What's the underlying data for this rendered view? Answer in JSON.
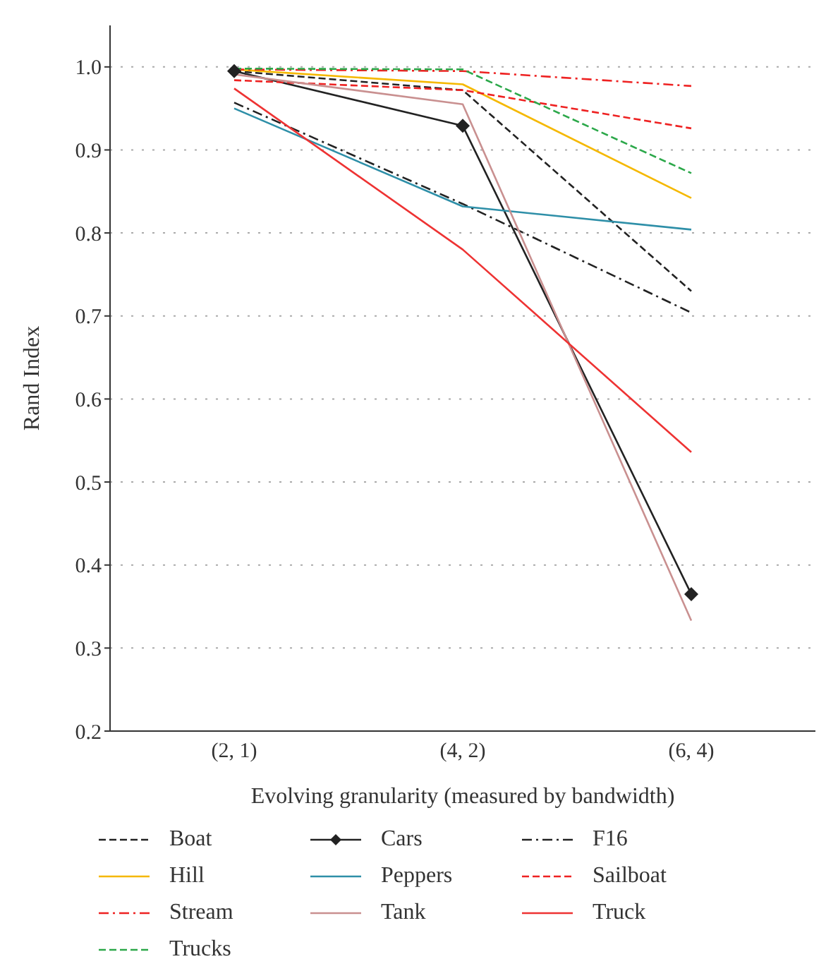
{
  "chart_data": {
    "type": "line",
    "xlabel": "Evolving granularity (measured by bandwidth)",
    "ylabel": "Rand Index",
    "categories": [
      "(2, 1)",
      "(4, 2)",
      "(6, 4)"
    ],
    "ylim": [
      0.2,
      1.05
    ],
    "yticks": [
      0.2,
      0.3,
      0.4,
      0.5,
      0.6,
      0.7,
      0.8,
      0.9,
      {
        "value": 1,
        "label": "1.0"
      }
    ],
    "grid": "y",
    "legend": "bottom",
    "marker": "none",
    "series": [
      {
        "name": "Boat",
        "color": "#222222",
        "line_style": "dashed",
        "values": [
          0.995,
          0.972,
          0.73
        ]
      },
      {
        "name": "Cars",
        "color": "#222222",
        "line_style": "solid",
        "marker": "diamond",
        "values": [
          0.995,
          0.929,
          0.365
        ]
      },
      {
        "name": "F16",
        "color": "#222222",
        "line_style": "dashdot",
        "values": [
          0.957,
          0.835,
          0.704
        ]
      },
      {
        "name": "Hill",
        "color": "#f5b800",
        "line_style": "solid",
        "values": [
          0.997,
          0.979,
          0.842
        ]
      },
      {
        "name": "Peppers",
        "color": "#2e8fa8",
        "line_style": "solid",
        "values": [
          0.95,
          0.832,
          0.804
        ]
      },
      {
        "name": "Sailboat",
        "color": "#ee2222",
        "line_style": "dashed",
        "values": [
          0.984,
          0.972,
          0.926
        ]
      },
      {
        "name": "Stream",
        "color": "#ee2222",
        "line_style": "dashdot",
        "values": [
          0.997,
          0.995,
          0.977
        ]
      },
      {
        "name": "Tank",
        "color": "#c99090",
        "line_style": "solid",
        "values": [
          0.991,
          0.955,
          0.333
        ]
      },
      {
        "name": "Truck",
        "color": "#ee3333",
        "line_style": "solid",
        "values": [
          0.974,
          0.78,
          0.536
        ]
      },
      {
        "name": "Trucks",
        "color": "#2ca84a",
        "line_style": "dashed",
        "values": [
          0.998,
          0.997,
          0.872
        ]
      }
    ]
  }
}
